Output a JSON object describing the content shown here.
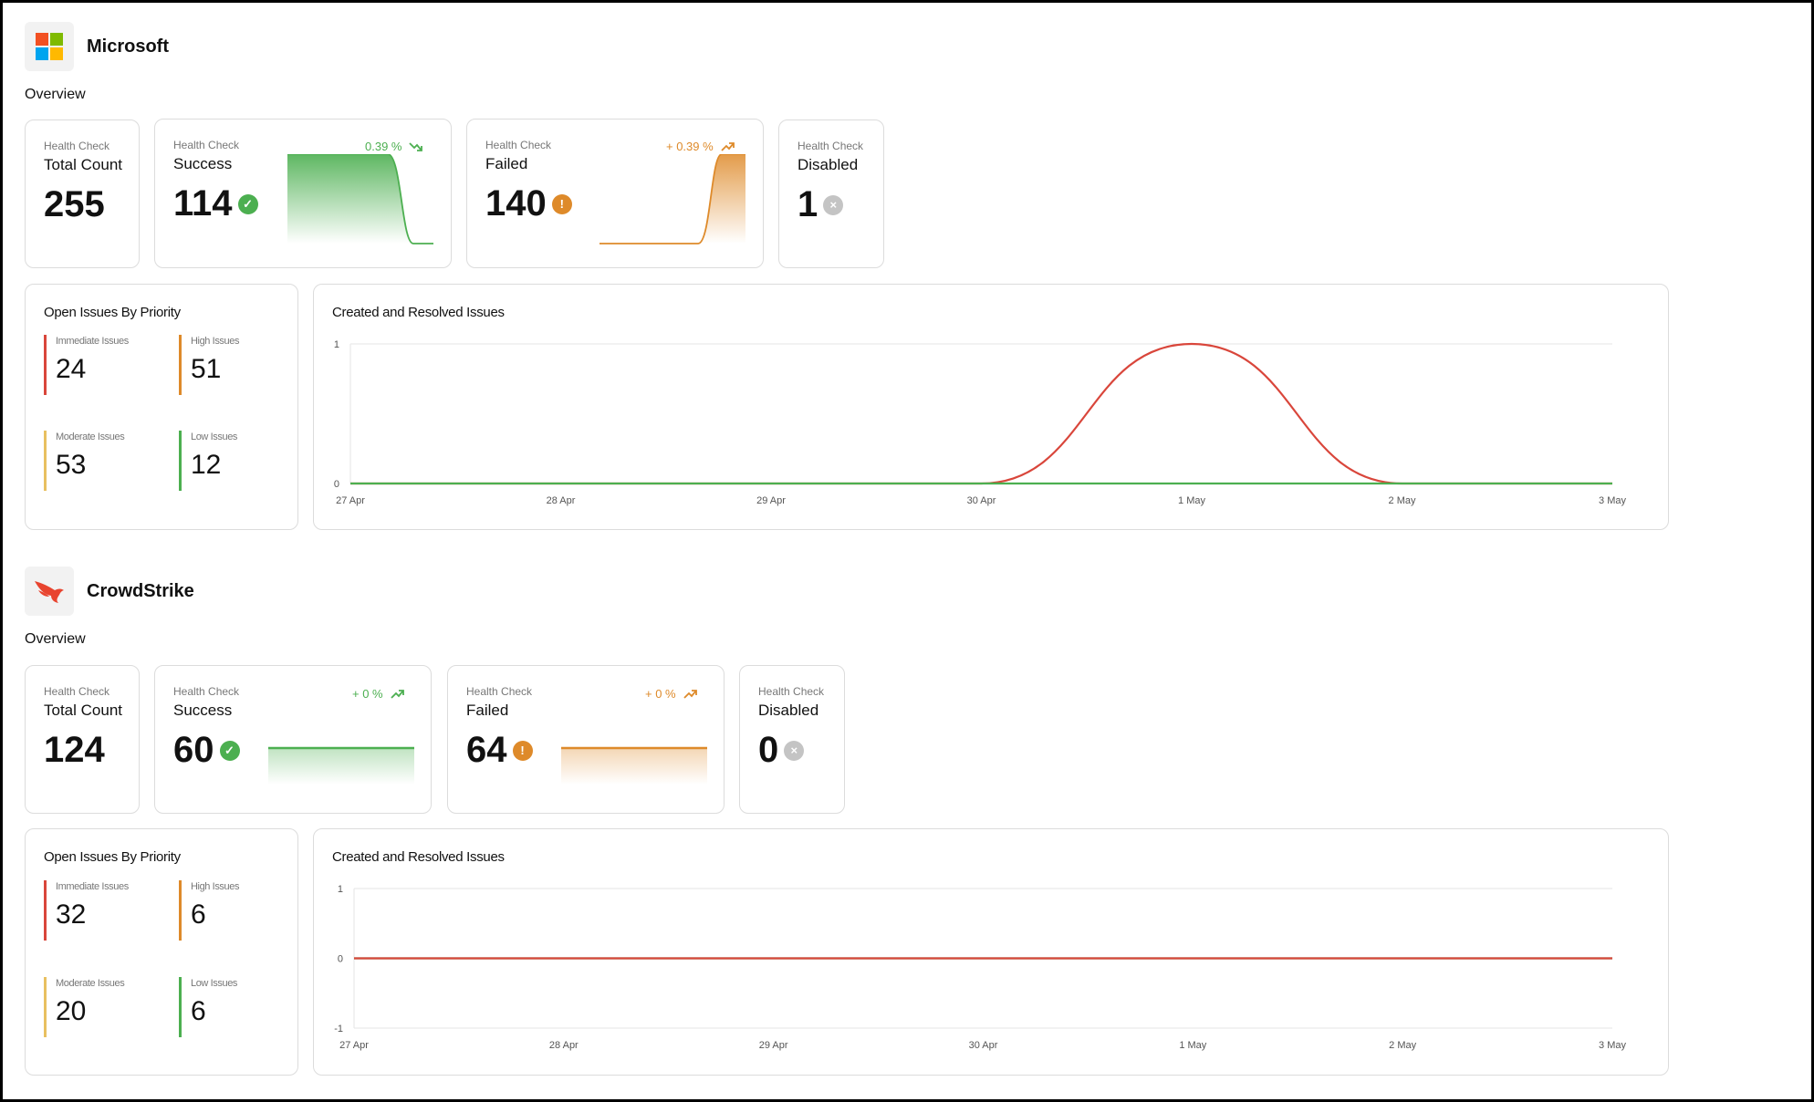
{
  "vendors": [
    {
      "name": "Microsoft",
      "logo_icon": "microsoft-logo",
      "overview_label": "Overview",
      "health": {
        "total": {
          "caption": "Health Check",
          "title": "Total Count",
          "value": "255"
        },
        "success": {
          "caption": "Health Check",
          "title": "Success",
          "value": "114",
          "delta": "0.39 %",
          "trend": "down",
          "color": "#4caf50"
        },
        "failed": {
          "caption": "Health Check",
          "title": "Failed",
          "value": "140",
          "delta": "+ 0.39 %",
          "trend": "up",
          "color": "#de8a2a"
        },
        "disabled": {
          "caption": "Health Check",
          "title": "Disabled",
          "value": "1"
        }
      },
      "priority": {
        "title": "Open Issues By Priority",
        "items": [
          {
            "label": "Immediate Issues",
            "value": "24",
            "color": "#d9463b"
          },
          {
            "label": "High Issues",
            "value": "51",
            "color": "#de8a2a"
          },
          {
            "label": "Moderate Issues",
            "value": "53",
            "color": "#e8c060"
          },
          {
            "label": "Low Issues",
            "value": "12",
            "color": "#4caf50"
          }
        ]
      },
      "issues_chart_title": "Created and Resolved Issues"
    },
    {
      "name": "CrowdStrike",
      "logo_icon": "crowdstrike-falcon-logo",
      "overview_label": "Overview",
      "health": {
        "total": {
          "caption": "Health Check",
          "title": "Total Count",
          "value": "124"
        },
        "success": {
          "caption": "Health Check",
          "title": "Success",
          "value": "60",
          "delta": "+ 0 %",
          "trend": "up",
          "color": "#4caf50"
        },
        "failed": {
          "caption": "Health Check",
          "title": "Failed",
          "value": "64",
          "delta": "+ 0 %",
          "trend": "up",
          "color": "#de8a2a"
        },
        "disabled": {
          "caption": "Health Check",
          "title": "Disabled",
          "value": "0"
        }
      },
      "priority": {
        "title": "Open Issues By Priority",
        "items": [
          {
            "label": "Immediate Issues",
            "value": "32",
            "color": "#d9463b"
          },
          {
            "label": "High Issues",
            "value": "6",
            "color": "#de8a2a"
          },
          {
            "label": "Moderate Issues",
            "value": "20",
            "color": "#e8c060"
          },
          {
            "label": "Low Issues",
            "value": "6",
            "color": "#4caf50"
          }
        ]
      },
      "issues_chart_title": "Created and Resolved Issues"
    }
  ],
  "chart_data": [
    {
      "type": "line",
      "title": "Created and Resolved Issues",
      "x": [
        "27 Apr",
        "28 Apr",
        "29 Apr",
        "30 Apr",
        "1 May",
        "2 May",
        "3 May"
      ],
      "ylim": [
        0,
        1
      ],
      "yticks": [
        "1",
        "0"
      ],
      "grid": true,
      "series": [
        {
          "values": [
            0,
            0,
            0,
            0,
            1,
            0,
            0
          ],
          "color": "#d9463b",
          "smooth": true
        },
        {
          "values": [
            0,
            0,
            0,
            0,
            0,
            0,
            0
          ],
          "color": "#4caf50"
        }
      ]
    },
    {
      "type": "line",
      "title": "Created and Resolved Issues",
      "x": [
        "27 Apr",
        "28 Apr",
        "29 Apr",
        "30 Apr",
        "1 May",
        "2 May",
        "3 May"
      ],
      "ylim": [
        -1,
        1
      ],
      "yticks": [
        "1",
        "0",
        "-1"
      ],
      "grid": true,
      "series": [
        {
          "values": [
            0,
            0,
            0,
            0,
            0,
            0,
            0
          ],
          "color": "#4caf50"
        },
        {
          "values": [
            0,
            0,
            0,
            0,
            0,
            0,
            0
          ],
          "color": "#d9463b"
        }
      ]
    }
  ]
}
